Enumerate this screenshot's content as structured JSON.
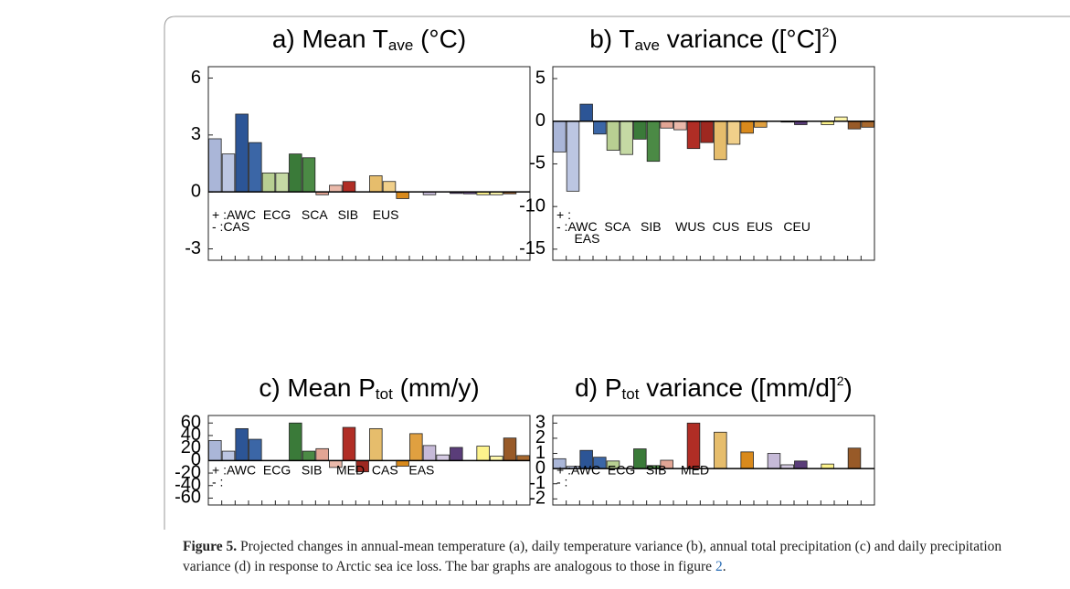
{
  "chart_data": [
    {
      "type": "bar",
      "title_parts": [
        {
          "text": "a) Mean T"
        },
        {
          "text": "ave",
          "sub": true
        },
        {
          "text": " (°C)"
        }
      ],
      "values": [
        2.8,
        2.0,
        4.1,
        2.6,
        1.0,
        1.0,
        2.0,
        1.8,
        -0.15,
        0.35,
        0.55,
        0,
        0.85,
        0.55,
        -0.35,
        0,
        -0.15,
        0,
        -0.08,
        -0.1,
        -0.15,
        -0.15,
        -0.1,
        0
      ],
      "ylim": [
        -3.6,
        6.6
      ],
      "yticks": [
        6,
        3,
        0,
        -3
      ],
      "annotations": [
        "+ :AWC  ECG   SCA   SIB    EUS",
        "- :CAS"
      ]
    },
    {
      "type": "bar",
      "title_parts": [
        {
          "text": "b) T"
        },
        {
          "text": "ave",
          "sub": true
        },
        {
          "text": " variance ([°C]"
        },
        {
          "text": "2",
          "sup": true
        },
        {
          "text": ")"
        }
      ],
      "values": [
        -3.6,
        -8.2,
        2.0,
        -1.5,
        -3.4,
        -3.9,
        -2.1,
        -4.7,
        -0.8,
        -1.0,
        -3.2,
        -2.5,
        -4.5,
        -2.7,
        -1.4,
        -0.7,
        0,
        -0.1,
        -0.4,
        0,
        -0.4,
        0.5,
        -0.9,
        -0.7
      ],
      "ylim": [
        -16.3,
        6.4
      ],
      "yticks": [
        5,
        0,
        -5,
        -10,
        -15
      ],
      "annotations": [
        "+ :",
        "- :AWC  SCA   SIB    WUS  CUS  EUS   CEU",
        "     EAS"
      ]
    },
    {
      "type": "bar",
      "title_parts": [
        {
          "text": "c) Mean P"
        },
        {
          "text": "tot",
          "sub": true
        },
        {
          "text": " (mm/y)"
        }
      ],
      "values": [
        32,
        15,
        51,
        34,
        0,
        0,
        60,
        15,
        19,
        -11,
        53,
        -18,
        51,
        0,
        -9,
        43,
        24,
        9,
        21,
        0,
        23,
        7,
        36,
        8
      ],
      "ylim": [
        -71,
        72
      ],
      "yticks": [
        60,
        40,
        20,
        0,
        -20,
        -40,
        -60
      ],
      "annotations": [
        "+ :AWC  ECG   SIB    MED  CAS   EAS",
        "- :"
      ]
    },
    {
      "type": "bar",
      "title_parts": [
        {
          "text": "d) P"
        },
        {
          "text": "tot",
          "sub": true
        },
        {
          "text": " variance ([mm/d]"
        },
        {
          "text": "2",
          "sup": true
        },
        {
          "text": ")"
        }
      ],
      "values": [
        0.65,
        0.15,
        1.2,
        0.75,
        0.5,
        0,
        1.3,
        0.2,
        0.55,
        0,
        3.0,
        0,
        2.4,
        0,
        1.1,
        0,
        1.0,
        0.25,
        0.5,
        0,
        0.3,
        0,
        1.35,
        0
      ],
      "ylim": [
        -2.4,
        3.5
      ],
      "yticks": [
        3,
        2,
        1,
        0,
        -1,
        -2
      ],
      "annotations": [
        "+ :AWC  ECG   SIB    MED",
        "- :"
      ]
    }
  ],
  "colors": [
    "#aab6d8",
    "#bcc6e2",
    "#2c5596",
    "#3b66a6",
    "#b8cf92",
    "#c5d9a4",
    "#3a7a39",
    "#4b8a45",
    "#e2a594",
    "#eab9aa",
    "#b02d25",
    "#9e2820",
    "#e6bd6c",
    "#f0cf8a",
    "#d98a1c",
    "#e0a040",
    "#c6bad8",
    "#d4cae2",
    "#5a3d79",
    "#6a4c8a",
    "#fdf38c",
    "#fef7ab",
    "#985a28",
    "#a8692f"
  ],
  "caption": {
    "label": "Figure 5.",
    "text": " Projected changes in annual-mean temperature (a), daily temperature variance (b), annual total precipitation (c) and daily precipitation variance (d) in response to Arctic sea ice loss. The bar graphs are analogous to those in figure ",
    "link": "2",
    "end": "."
  }
}
